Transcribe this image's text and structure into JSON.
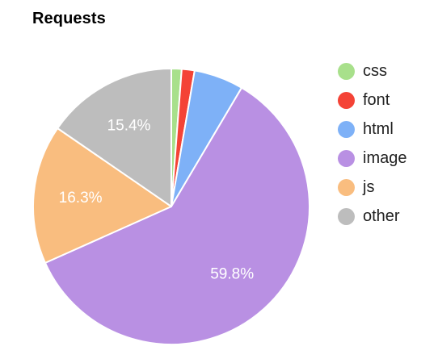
{
  "chart_data": {
    "type": "pie",
    "title": "Requests",
    "categories": [
      "css",
      "font",
      "html",
      "image",
      "js",
      "other"
    ],
    "values": [
      1.2,
      1.5,
      5.8,
      59.8,
      16.3,
      15.4
    ],
    "slice_labels": [
      "",
      "",
      "",
      "59.8%",
      "16.3%",
      "15.4%"
    ],
    "colors": [
      "#a8e08b",
      "#f44336",
      "#7eb1f7",
      "#b990e3",
      "#f9bd7f",
      "#bdbdbd"
    ],
    "legend_position": "right",
    "start": "top",
    "direction": "clockwise"
  }
}
